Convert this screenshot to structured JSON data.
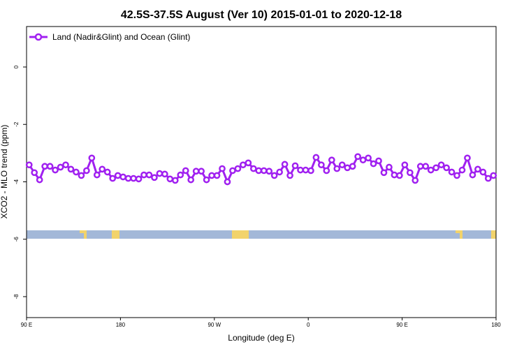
{
  "chart_data": {
    "type": "line",
    "title": "42.5S-37.5S August (Ver 10)   2015-01-01 to 2020-12-18",
    "x_label": "Longitude (deg E)",
    "y_label": "XCO2 - MLO trend (ppm)",
    "x": [
      92.5,
      97.5,
      102.5,
      107.5,
      112.5,
      117.5,
      122.5,
      127.5,
      132.5,
      137.5,
      142.5,
      147.5,
      152.5,
      157.5,
      162.5,
      167.5,
      172.5,
      177.5,
      182.5,
      187.5,
      192.5,
      197.5,
      202.5,
      207.5,
      212.5,
      217.5,
      222.5,
      227.5,
      232.5,
      237.5,
      242.5,
      247.5,
      252.5,
      257.5,
      262.5,
      267.5,
      272.5,
      277.5,
      282.5,
      287.5,
      292.5,
      297.5,
      302.5,
      307.5,
      312.5,
      317.5,
      322.5,
      327.5,
      332.5,
      337.5,
      342.5,
      347.5,
      352.5,
      357.5,
      362.5,
      367.5,
      372.5,
      377.5,
      382.5,
      387.5,
      392.5,
      397.5,
      402.5,
      407.5,
      412.5,
      417.5,
      422.5,
      427.5,
      432.5,
      437.5,
      442.5,
      447.5,
      452.5,
      457.5,
      462.5,
      467.5,
      472.5,
      477.5,
      482.5,
      487.5,
      492.5,
      497.5,
      502.5,
      507.5,
      512.5,
      517.5,
      522.5,
      527.5,
      532.5,
      537.5
    ],
    "series": [
      {
        "name": "Land (Nadir&Glint) and Ocean (Glint)",
        "color": "#a020f0",
        "values": [
          -3.41,
          -3.68,
          -3.93,
          -3.46,
          -3.46,
          -3.59,
          -3.49,
          -3.41,
          -3.56,
          -3.66,
          -3.78,
          -3.61,
          -3.17,
          -3.76,
          -3.56,
          -3.66,
          -3.88,
          -3.78,
          -3.83,
          -3.88,
          -3.88,
          -3.9,
          -3.76,
          -3.76,
          -3.85,
          -3.71,
          -3.73,
          -3.9,
          -3.95,
          -3.76,
          -3.61,
          -3.93,
          -3.63,
          -3.63,
          -3.93,
          -3.78,
          -3.78,
          -3.54,
          -4.0,
          -3.61,
          -3.54,
          -3.41,
          -3.34,
          -3.54,
          -3.61,
          -3.61,
          -3.63,
          -3.78,
          -3.66,
          -3.39,
          -3.78,
          -3.44,
          -3.59,
          -3.59,
          -3.61,
          -3.15,
          -3.41,
          -3.61,
          -3.24,
          -3.54,
          -3.41,
          -3.51,
          -3.46,
          -3.12,
          -3.24,
          -3.17,
          -3.37,
          -3.27,
          -3.68,
          -3.49,
          -3.76,
          -3.78,
          -3.41,
          -3.68,
          -3.95,
          -3.46,
          -3.46,
          -3.59,
          -3.51,
          -3.41,
          -3.51,
          -3.66,
          -3.78,
          -3.59,
          -3.17,
          -3.76,
          -3.56,
          -3.66,
          -3.88,
          -3.78
        ]
      }
    ],
    "xlim": [
      90,
      540
    ],
    "xticks": [
      {
        "value": 90,
        "label": "90 E"
      },
      180,
      {
        "value": 270,
        "label": "90 W"
      },
      {
        "value": 360,
        "label": "0"
      },
      {
        "value": 450,
        "label": "90 E"
      },
      {
        "value": 540,
        "label": "180"
      }
    ],
    "ylim": [
      -8.73,
      1.41
    ],
    "yticks": [
      0,
      -2,
      -4,
      -6,
      -8
    ],
    "legend": "top-left"
  }
}
